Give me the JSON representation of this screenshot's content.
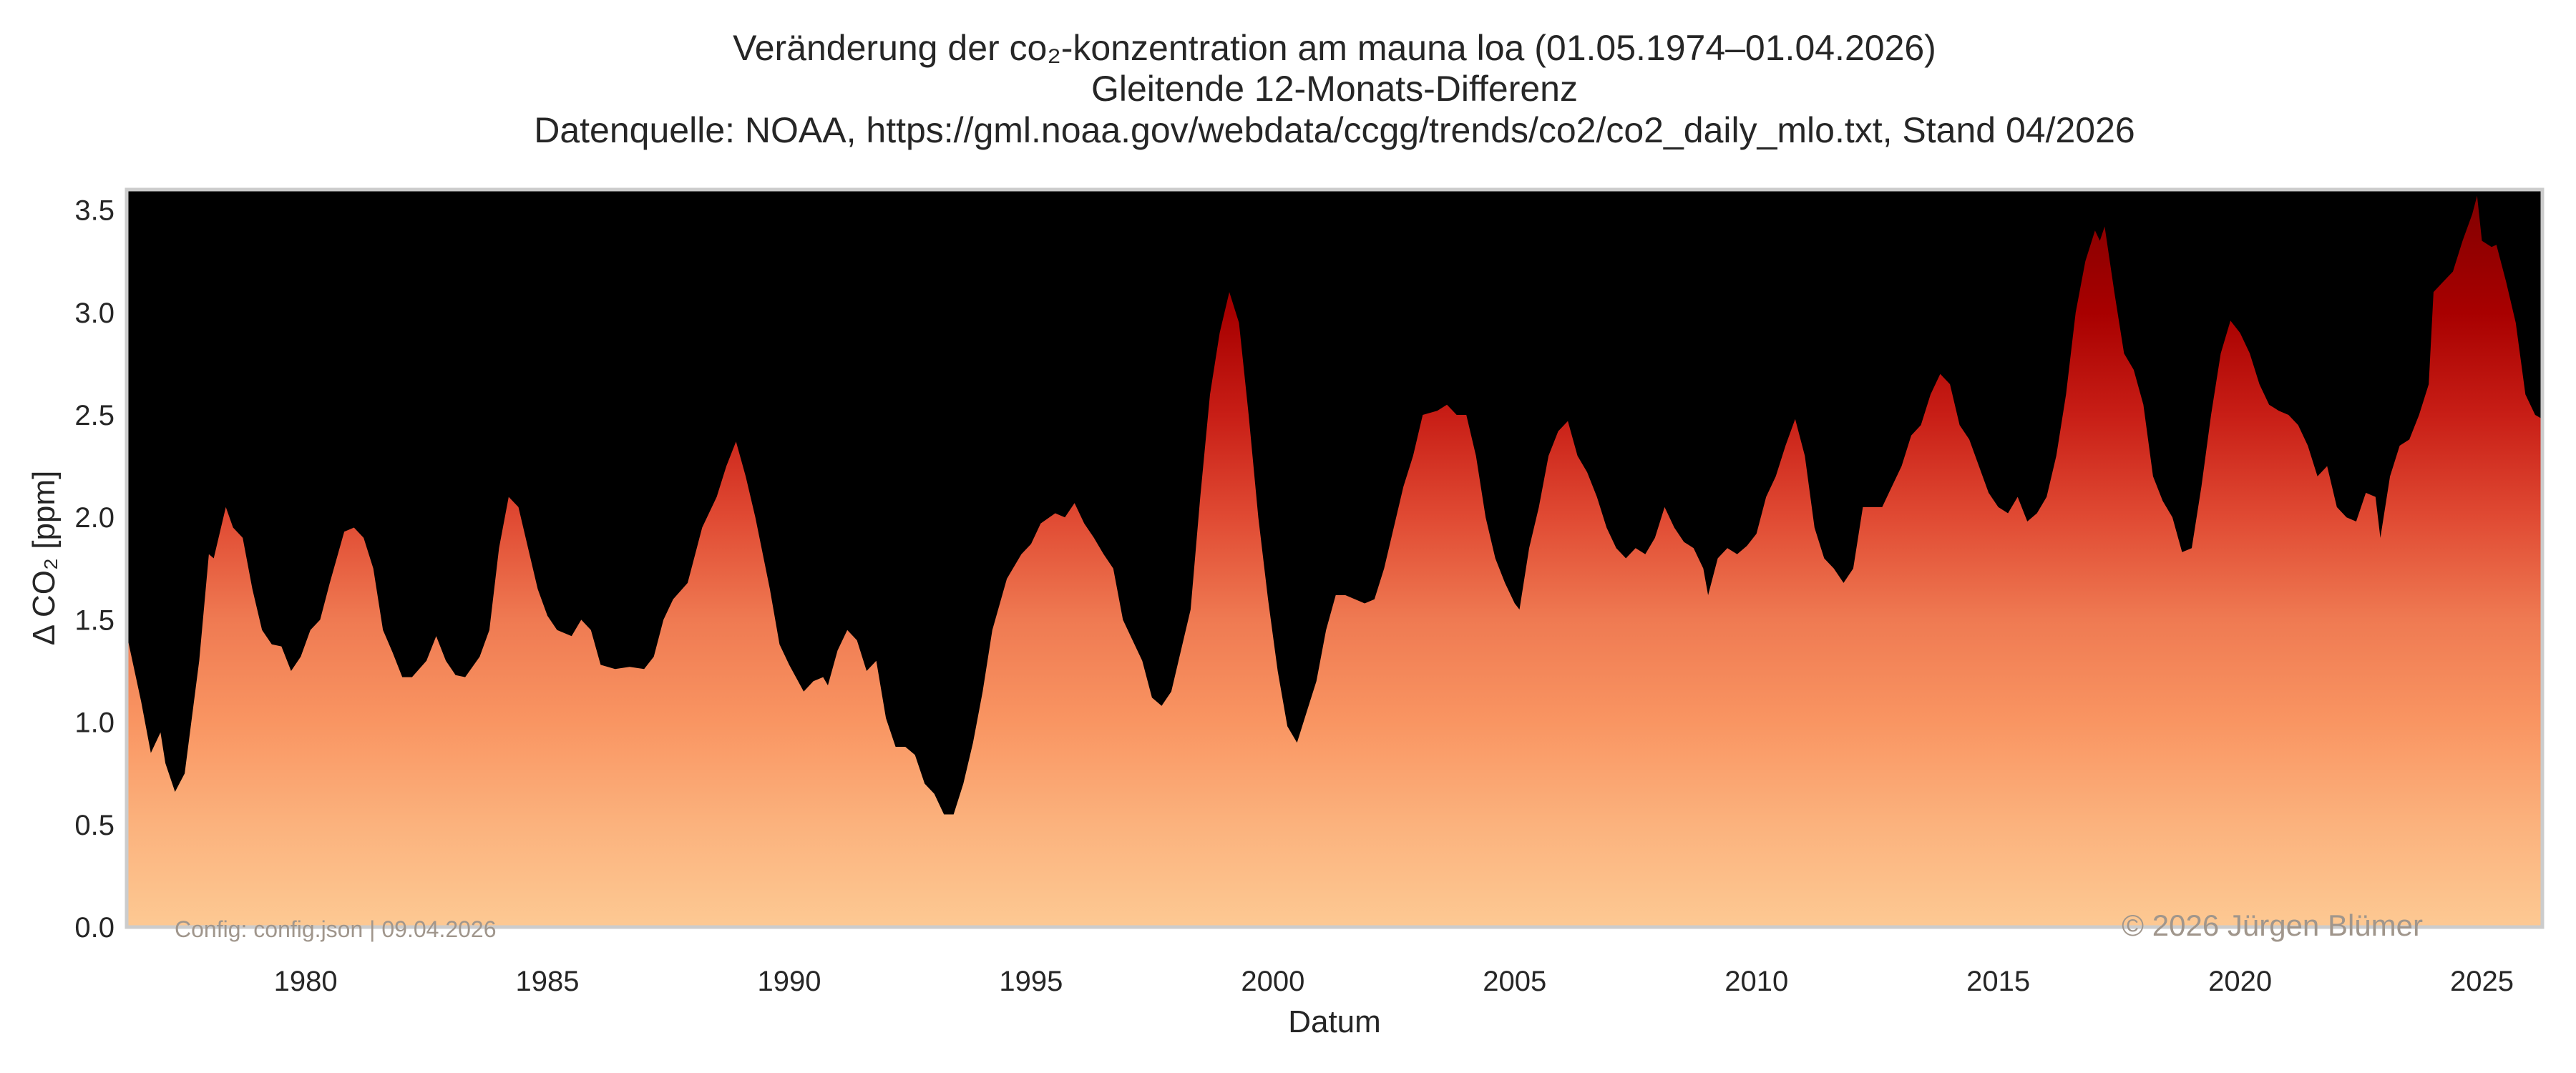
{
  "chart_data": {
    "type": "area",
    "title": "Veränderung der co₂-konzentration am mauna loa (01.05.1974–01.04.2026)",
    "subtitle": "Gleitende 12-Monats-Differenz",
    "source": "Datenquelle: NOAA, https://gml.noaa.gov/webdata/ccgg/trends/co2/co2_daily_mlo.txt, Stand 04/2026",
    "xlabel": "Datum",
    "ylabel": "Δ CO₂ [ppm]",
    "xlim": [
      1976.3,
      2026.25
    ],
    "ylim": [
      0,
      3.6
    ],
    "x_ticks": [
      "1980",
      "1985",
      "1990",
      "1995",
      "2000",
      "2005",
      "2010",
      "2015",
      "2020",
      "2025"
    ],
    "y_ticks": [
      "0.0",
      "0.5",
      "1.0",
      "1.5",
      "2.0",
      "2.5",
      "3.0",
      "3.5"
    ],
    "grid": false,
    "background_color": "#000000",
    "colormap": {
      "0": "#fdc993",
      "0.5": "#fbb27d",
      "1.0": "#f99562",
      "1.5": "#ef7a52",
      "2.0": "#e04a33",
      "2.5": "#c81e16",
      "3.0": "#a80000",
      "3.5": "#860000"
    },
    "watermark_left": "Config: config.json | 09.04.2026",
    "watermark_right": "© 2026 Jürgen Blümer",
    "x": [
      1976.3,
      1976.6,
      1976.8,
      1977.0,
      1977.1,
      1977.3,
      1977.5,
      1977.8,
      1978.0,
      1978.1,
      1978.35,
      1978.5,
      1978.7,
      1978.9,
      1979.1,
      1979.3,
      1979.5,
      1979.7,
      1979.9,
      1980.1,
      1980.3,
      1980.5,
      1980.8,
      1981.0,
      1981.2,
      1981.4,
      1981.6,
      1981.8,
      1982.0,
      1982.2,
      1982.5,
      1982.7,
      1982.9,
      1983.1,
      1983.3,
      1983.6,
      1983.8,
      1984.0,
      1984.2,
      1984.4,
      1984.6,
      1984.8,
      1985.0,
      1985.2,
      1985.5,
      1985.7,
      1985.9,
      1986.1,
      1986.4,
      1986.7,
      1987.0,
      1987.2,
      1987.4,
      1987.6,
      1987.9,
      1988.2,
      1988.5,
      1988.7,
      1988.9,
      1989.1,
      1989.3,
      1989.6,
      1989.8,
      1990.0,
      1990.3,
      1990.5,
      1990.7,
      1990.8,
      1991.0,
      1991.2,
      1991.4,
      1991.6,
      1991.8,
      1992.0,
      1992.2,
      1992.4,
      1992.6,
      1992.8,
      1993.0,
      1993.2,
      1993.4,
      1993.6,
      1993.8,
      1994.0,
      1994.2,
      1994.5,
      1994.8,
      1995.0,
      1995.2,
      1995.5,
      1995.7,
      1995.9,
      1996.1,
      1996.3,
      1996.5,
      1996.7,
      1996.9,
      1997.1,
      1997.3,
      1997.5,
      1997.7,
      1997.9,
      1998.1,
      1998.3,
      1998.5,
      1998.7,
      1998.9,
      1999.1,
      1999.3,
      1999.5,
      1999.7,
      1999.9,
      2000.1,
      2000.3,
      2000.5,
      2000.7,
      2000.9,
      2001.1,
      2001.3,
      2001.5,
      2001.7,
      2001.9,
      2002.1,
      2002.3,
      2002.5,
      2002.7,
      2002.9,
      2003.1,
      2003.4,
      2003.6,
      2003.8,
      2004.0,
      2004.2,
      2004.4,
      2004.6,
      2004.8,
      2005.0,
      2005.1,
      2005.3,
      2005.5,
      2005.7,
      2005.9,
      2006.1,
      2006.3,
      2006.5,
      2006.7,
      2006.9,
      2007.1,
      2007.3,
      2007.5,
      2007.7,
      2007.9,
      2008.1,
      2008.3,
      2008.5,
      2008.7,
      2008.9,
      2009.0,
      2009.2,
      2009.4,
      2009.6,
      2009.8,
      2010.0,
      2010.2,
      2010.4,
      2010.6,
      2010.8,
      2011.0,
      2011.2,
      2011.4,
      2011.6,
      2011.8,
      2012.0,
      2012.2,
      2012.4,
      2012.6,
      2012.8,
      2013.0,
      2013.2,
      2013.4,
      2013.6,
      2013.8,
      2014.0,
      2014.2,
      2014.4,
      2014.6,
      2014.8,
      2015.0,
      2015.2,
      2015.4,
      2015.6,
      2015.8,
      2016.0,
      2016.2,
      2016.4,
      2016.6,
      2016.8,
      2017.0,
      2017.1,
      2017.2,
      2017.4,
      2017.6,
      2017.8,
      2018.0,
      2018.2,
      2018.4,
      2018.6,
      2018.8,
      2019.0,
      2019.2,
      2019.4,
      2019.6,
      2019.8,
      2020.0,
      2020.2,
      2020.4,
      2020.6,
      2020.8,
      2021.0,
      2021.2,
      2021.4,
      2021.6,
      2021.8,
      2022.0,
      2022.2,
      2022.4,
      2022.6,
      2022.8,
      2022.9,
      2023.1,
      2023.3,
      2023.5,
      2023.7,
      2023.9,
      2024.0,
      2024.2,
      2024.4,
      2024.6,
      2024.8,
      2024.9,
      2025.0,
      2025.2,
      2025.3,
      2025.5,
      2025.7,
      2025.9,
      2026.1,
      2026.25
    ],
    "y": [
      1.43,
      1.1,
      0.85,
      0.95,
      0.8,
      0.66,
      0.75,
      1.3,
      1.82,
      1.8,
      2.05,
      1.95,
      1.9,
      1.65,
      1.45,
      1.38,
      1.37,
      1.25,
      1.32,
      1.45,
      1.5,
      1.68,
      1.93,
      1.95,
      1.9,
      1.75,
      1.45,
      1.34,
      1.22,
      1.22,
      1.3,
      1.42,
      1.3,
      1.23,
      1.22,
      1.32,
      1.45,
      1.85,
      2.1,
      2.05,
      1.85,
      1.65,
      1.52,
      1.45,
      1.42,
      1.5,
      1.45,
      1.28,
      1.26,
      1.27,
      1.26,
      1.32,
      1.5,
      1.6,
      1.68,
      1.95,
      2.1,
      2.25,
      2.37,
      2.2,
      2.0,
      1.65,
      1.38,
      1.28,
      1.15,
      1.2,
      1.22,
      1.18,
      1.35,
      1.45,
      1.4,
      1.25,
      1.3,
      1.02,
      0.88,
      0.88,
      0.84,
      0.7,
      0.65,
      0.55,
      0.55,
      0.7,
      0.9,
      1.15,
      1.45,
      1.7,
      1.82,
      1.87,
      1.97,
      2.02,
      2.0,
      2.07,
      1.97,
      1.9,
      1.82,
      1.75,
      1.5,
      1.4,
      1.3,
      1.12,
      1.08,
      1.15,
      1.35,
      1.55,
      2.1,
      2.6,
      2.9,
      3.1,
      2.95,
      2.5,
      2.0,
      1.6,
      1.25,
      0.98,
      0.9,
      1.05,
      1.2,
      1.45,
      1.62,
      1.62,
      1.6,
      1.58,
      1.6,
      1.75,
      1.95,
      2.15,
      2.3,
      2.5,
      2.52,
      2.55,
      2.5,
      2.5,
      2.3,
      2.0,
      1.8,
      1.68,
      1.58,
      1.55,
      1.85,
      2.05,
      2.3,
      2.42,
      2.47,
      2.3,
      2.22,
      2.1,
      1.95,
      1.85,
      1.8,
      1.85,
      1.82,
      1.9,
      2.05,
      1.95,
      1.88,
      1.85,
      1.75,
      1.62,
      1.8,
      1.85,
      1.82,
      1.86,
      1.92,
      2.1,
      2.2,
      2.35,
      2.48,
      2.3,
      1.95,
      1.8,
      1.75,
      1.68,
      1.75,
      2.05,
      2.05,
      2.05,
      2.15,
      2.25,
      2.4,
      2.45,
      2.6,
      2.7,
      2.65,
      2.45,
      2.38,
      2.25,
      2.12,
      2.05,
      2.02,
      2.1,
      1.98,
      2.02,
      2.1,
      2.3,
      2.6,
      3.0,
      3.25,
      3.4,
      3.35,
      3.42,
      3.1,
      2.8,
      2.72,
      2.55,
      2.2,
      2.08,
      2.0,
      1.83,
      1.85,
      2.15,
      2.5,
      2.8,
      2.96,
      2.9,
      2.8,
      2.65,
      2.55,
      2.52,
      2.5,
      2.45,
      2.35,
      2.2,
      2.25,
      2.05,
      2.0,
      1.98,
      2.12,
      2.1,
      1.9,
      2.2,
      2.35,
      2.38,
      2.5,
      2.65,
      3.1,
      3.15,
      3.2,
      3.35,
      3.48,
      3.57,
      3.35,
      3.32,
      3.33,
      3.15,
      2.95,
      2.6,
      2.5,
      2.48
    ]
  }
}
